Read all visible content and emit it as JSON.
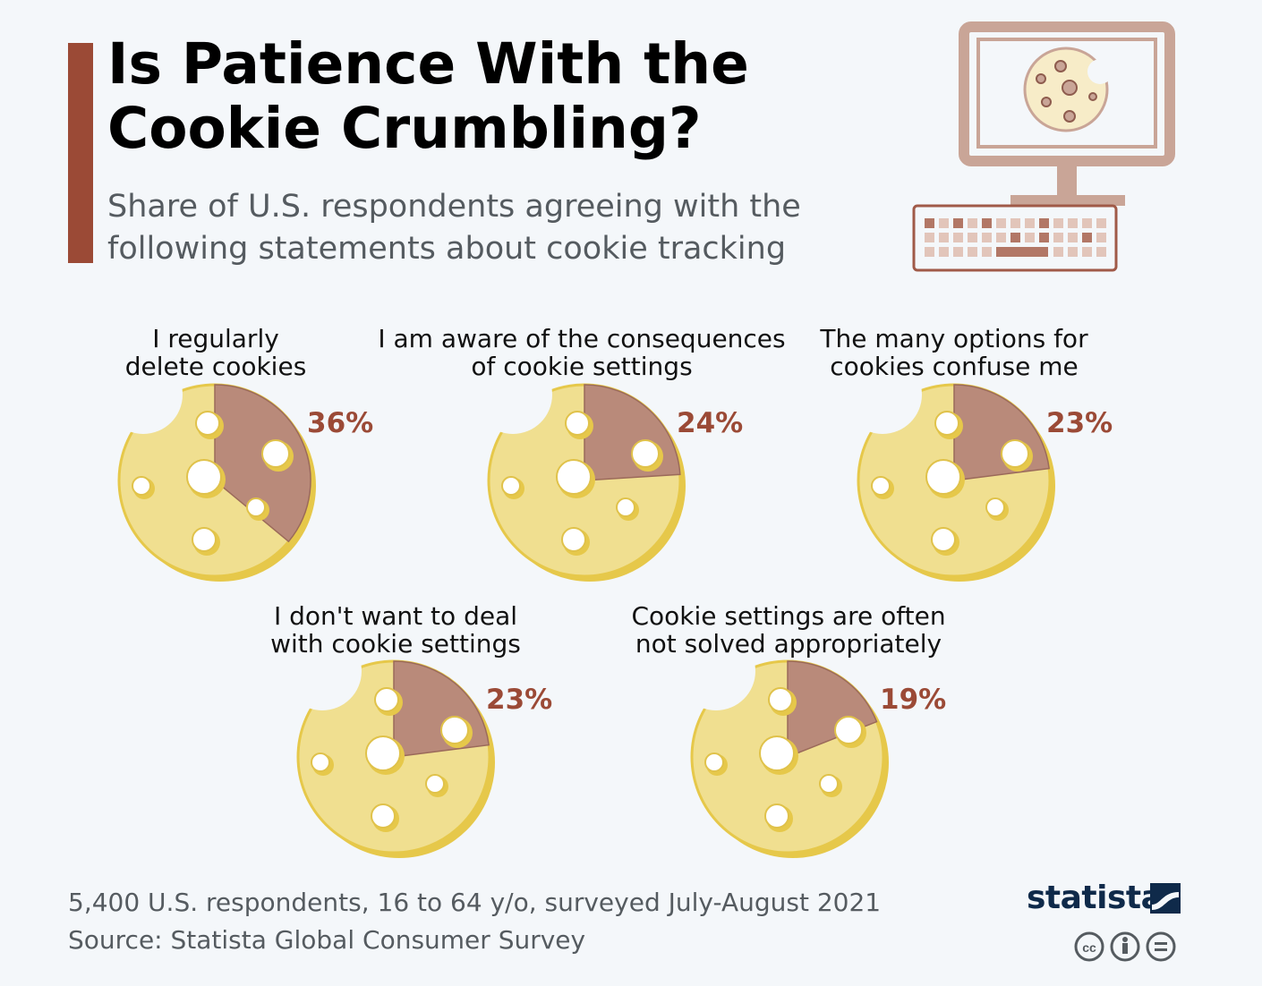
{
  "header": {
    "title_line1": "Is Patience With the",
    "title_line2": "Cookie Crumbling?",
    "subtitle_line1": "Share of U.S. respondents agreeing with the",
    "subtitle_line2": "following statements about cookie tracking"
  },
  "chart_data": {
    "type": "pie",
    "title": "Is Patience With the Cookie Crumbling?",
    "subtitle": "Share of U.S. respondents agreeing with the following statements about cookie tracking",
    "unit": "%",
    "series": [
      {
        "name": "I regularly delete cookies",
        "label_line1": "I regularly",
        "label_line2": "delete cookies",
        "value": 36,
        "value_label": "36%"
      },
      {
        "name": "I am aware of the consequences of cookie settings",
        "label_line1": "I am aware of the consequences",
        "label_line2": "of cookie settings",
        "value": 24,
        "value_label": "24%"
      },
      {
        "name": "The many options for cookies confuse me",
        "label_line1": "The many options for",
        "label_line2": "cookies confuse me",
        "value": 23,
        "value_label": "23%"
      },
      {
        "name": "I don't want to deal with cookie settings",
        "label_line1": "I don't want to deal",
        "label_line2": "with cookie settings",
        "value": 23,
        "value_label": "23%"
      },
      {
        "name": "Cookie settings are often not solved appropriately",
        "label_line1": "Cookie settings are often",
        "label_line2": "not solved appropriately",
        "value": 19,
        "value_label": "19%"
      }
    ]
  },
  "footer": {
    "note": "5,400 U.S. respondents, 16 to 64 y/o, surveyed July-August 2021",
    "source": "Source: Statista Global Consumer Survey",
    "brand": "statista",
    "license_icons": [
      "cc-icon",
      "by-icon",
      "nd-icon"
    ]
  },
  "colors": {
    "accent": "#9b4a36",
    "cookie_fill": "#f0df90",
    "cookie_shadow": "#e6c84a",
    "slice_fill": "#b98a7a",
    "brand": "#0f2a4a"
  }
}
